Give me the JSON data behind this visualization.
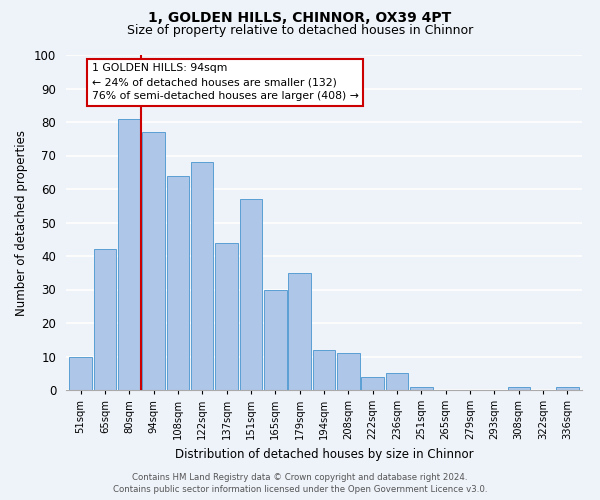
{
  "title": "1, GOLDEN HILLS, CHINNOR, OX39 4PT",
  "subtitle": "Size of property relative to detached houses in Chinnor",
  "xlabel": "Distribution of detached houses by size in Chinnor",
  "ylabel": "Number of detached properties",
  "bin_labels": [
    "51sqm",
    "65sqm",
    "80sqm",
    "94sqm",
    "108sqm",
    "122sqm",
    "137sqm",
    "151sqm",
    "165sqm",
    "179sqm",
    "194sqm",
    "208sqm",
    "222sqm",
    "236sqm",
    "251sqm",
    "265sqm",
    "279sqm",
    "293sqm",
    "308sqm",
    "322sqm",
    "336sqm"
  ],
  "bar_heights": [
    10,
    42,
    81,
    77,
    64,
    68,
    44,
    57,
    30,
    35,
    12,
    11,
    4,
    5,
    1,
    0,
    0,
    0,
    1,
    0,
    1
  ],
  "bar_color": "#aec6e8",
  "bar_edge_color": "#5a9fd4",
  "vline_x_index": 3,
  "vline_color": "#cc0000",
  "annotation_line1": "1 GOLDEN HILLS: 94sqm",
  "annotation_line2": "← 24% of detached houses are smaller (132)",
  "annotation_line3": "76% of semi-detached houses are larger (408) →",
  "annotation_box_color": "#ffffff",
  "annotation_border_color": "#cc0000",
  "ylim": [
    0,
    100
  ],
  "yticks": [
    0,
    10,
    20,
    30,
    40,
    50,
    60,
    70,
    80,
    90,
    100
  ],
  "bg_color": "#eef2f9",
  "grid_color": "#ffffff",
  "footer_line1": "Contains HM Land Registry data © Crown copyright and database right 2024.",
  "footer_line2": "Contains public sector information licensed under the Open Government Licence v3.0."
}
